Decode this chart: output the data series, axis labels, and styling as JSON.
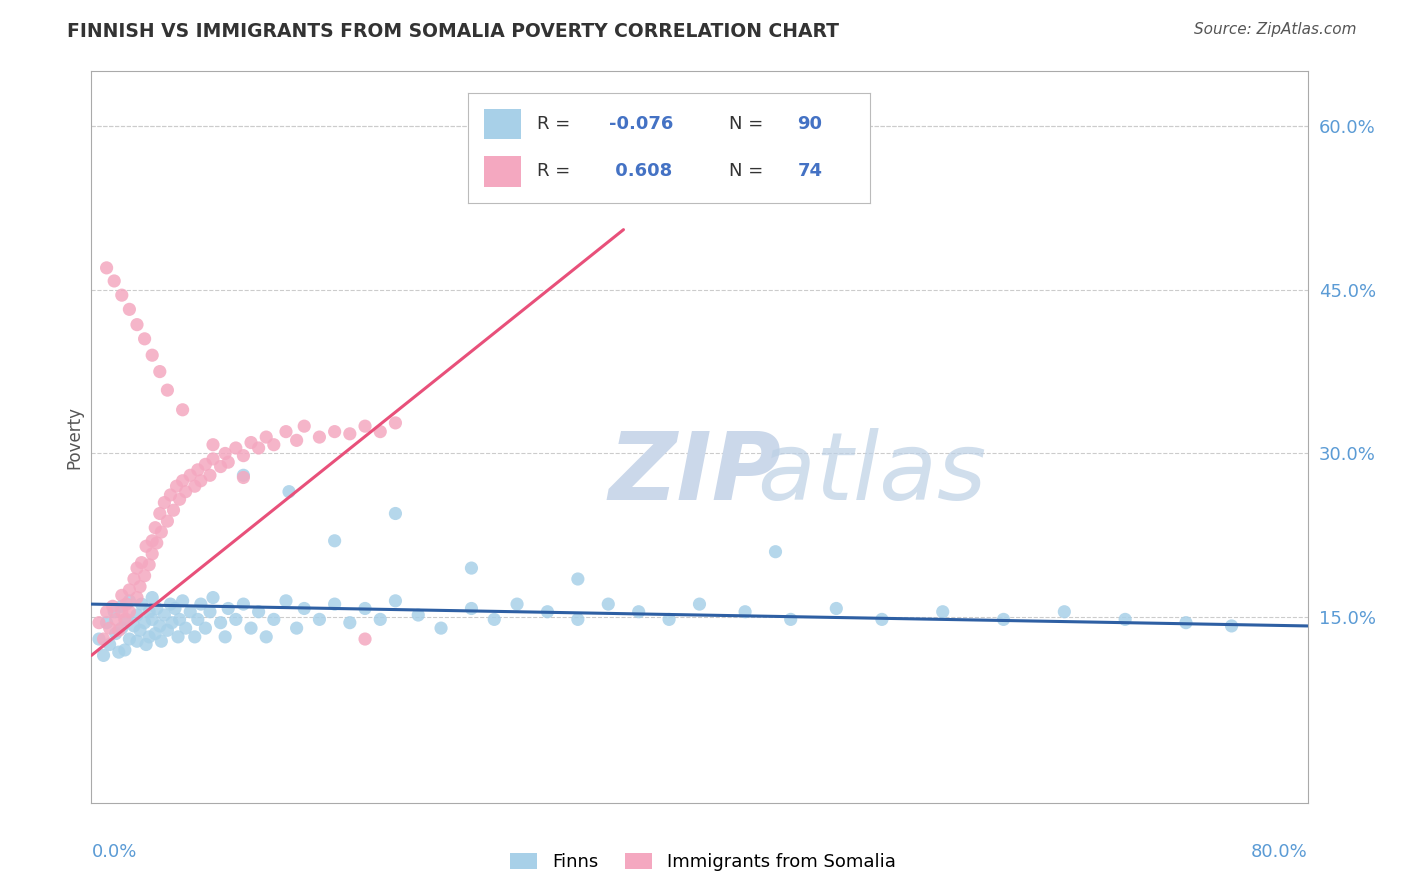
{
  "title": "FINNISH VS IMMIGRANTS FROM SOMALIA POVERTY CORRELATION CHART",
  "source": "Source: ZipAtlas.com",
  "ylabel": "Poverty",
  "legend_label1": "Finns",
  "legend_label2": "Immigrants from Somalia",
  "color_blue": "#A8D0E8",
  "color_pink": "#F4A8C0",
  "line_blue": "#2E5FA3",
  "line_pink": "#E8507A",
  "xlim": [
    0.0,
    0.8
  ],
  "ylim": [
    -0.02,
    0.65
  ],
  "yticks": [
    0.15,
    0.3,
    0.45,
    0.6
  ],
  "finns_x": [
    0.005,
    0.008,
    0.01,
    0.012,
    0.015,
    0.016,
    0.018,
    0.02,
    0.02,
    0.022,
    0.023,
    0.025,
    0.025,
    0.028,
    0.03,
    0.03,
    0.032,
    0.033,
    0.035,
    0.036,
    0.038,
    0.038,
    0.04,
    0.04,
    0.042,
    0.043,
    0.045,
    0.046,
    0.048,
    0.05,
    0.052,
    0.053,
    0.055,
    0.057,
    0.058,
    0.06,
    0.062,
    0.065,
    0.068,
    0.07,
    0.072,
    0.075,
    0.078,
    0.08,
    0.085,
    0.088,
    0.09,
    0.095,
    0.1,
    0.105,
    0.11,
    0.115,
    0.12,
    0.128,
    0.135,
    0.14,
    0.15,
    0.16,
    0.17,
    0.18,
    0.19,
    0.2,
    0.215,
    0.23,
    0.25,
    0.265,
    0.28,
    0.3,
    0.32,
    0.34,
    0.36,
    0.38,
    0.4,
    0.43,
    0.46,
    0.49,
    0.52,
    0.56,
    0.6,
    0.64,
    0.68,
    0.72,
    0.75,
    0.1,
    0.13,
    0.16,
    0.2,
    0.25,
    0.32,
    0.45
  ],
  "finns_y": [
    0.13,
    0.115,
    0.145,
    0.125,
    0.155,
    0.135,
    0.118,
    0.14,
    0.16,
    0.12,
    0.148,
    0.13,
    0.165,
    0.142,
    0.152,
    0.128,
    0.138,
    0.162,
    0.145,
    0.125,
    0.155,
    0.132,
    0.148,
    0.168,
    0.135,
    0.158,
    0.142,
    0.128,
    0.152,
    0.138,
    0.162,
    0.145,
    0.158,
    0.132,
    0.148,
    0.165,
    0.14,
    0.155,
    0.132,
    0.148,
    0.162,
    0.14,
    0.155,
    0.168,
    0.145,
    0.132,
    0.158,
    0.148,
    0.162,
    0.14,
    0.155,
    0.132,
    0.148,
    0.165,
    0.14,
    0.158,
    0.148,
    0.162,
    0.145,
    0.158,
    0.148,
    0.165,
    0.152,
    0.14,
    0.158,
    0.148,
    0.162,
    0.155,
    0.148,
    0.162,
    0.155,
    0.148,
    0.162,
    0.155,
    0.148,
    0.158,
    0.148,
    0.155,
    0.148,
    0.155,
    0.148,
    0.145,
    0.142,
    0.28,
    0.265,
    0.22,
    0.245,
    0.195,
    0.185,
    0.21
  ],
  "somalia_x": [
    0.005,
    0.008,
    0.01,
    0.012,
    0.014,
    0.016,
    0.018,
    0.02,
    0.02,
    0.022,
    0.023,
    0.025,
    0.025,
    0.028,
    0.03,
    0.03,
    0.032,
    0.033,
    0.035,
    0.036,
    0.038,
    0.04,
    0.04,
    0.042,
    0.043,
    0.045,
    0.046,
    0.048,
    0.05,
    0.052,
    0.054,
    0.056,
    0.058,
    0.06,
    0.062,
    0.065,
    0.068,
    0.07,
    0.072,
    0.075,
    0.078,
    0.08,
    0.085,
    0.088,
    0.09,
    0.095,
    0.1,
    0.105,
    0.11,
    0.115,
    0.12,
    0.128,
    0.135,
    0.14,
    0.15,
    0.16,
    0.17,
    0.18,
    0.19,
    0.2,
    0.01,
    0.015,
    0.02,
    0.025,
    0.03,
    0.035,
    0.04,
    0.045,
    0.05,
    0.06,
    0.08,
    0.1,
    0.35,
    0.18
  ],
  "somalia_y": [
    0.145,
    0.13,
    0.155,
    0.14,
    0.16,
    0.148,
    0.138,
    0.155,
    0.17,
    0.148,
    0.162,
    0.175,
    0.155,
    0.185,
    0.168,
    0.195,
    0.178,
    0.2,
    0.188,
    0.215,
    0.198,
    0.22,
    0.208,
    0.232,
    0.218,
    0.245,
    0.228,
    0.255,
    0.238,
    0.262,
    0.248,
    0.27,
    0.258,
    0.275,
    0.265,
    0.28,
    0.27,
    0.285,
    0.275,
    0.29,
    0.28,
    0.295,
    0.288,
    0.3,
    0.292,
    0.305,
    0.298,
    0.31,
    0.305,
    0.315,
    0.308,
    0.32,
    0.312,
    0.325,
    0.315,
    0.32,
    0.318,
    0.325,
    0.32,
    0.328,
    0.47,
    0.458,
    0.445,
    0.432,
    0.418,
    0.405,
    0.39,
    0.375,
    0.358,
    0.34,
    0.308,
    0.278,
    0.56,
    0.13
  ],
  "finns_trend_x": [
    0.0,
    0.8
  ],
  "finns_trend_y": [
    0.162,
    0.142
  ],
  "somalia_trend_x": [
    0.0,
    0.35
  ],
  "somalia_trend_y": [
    0.115,
    0.505
  ]
}
